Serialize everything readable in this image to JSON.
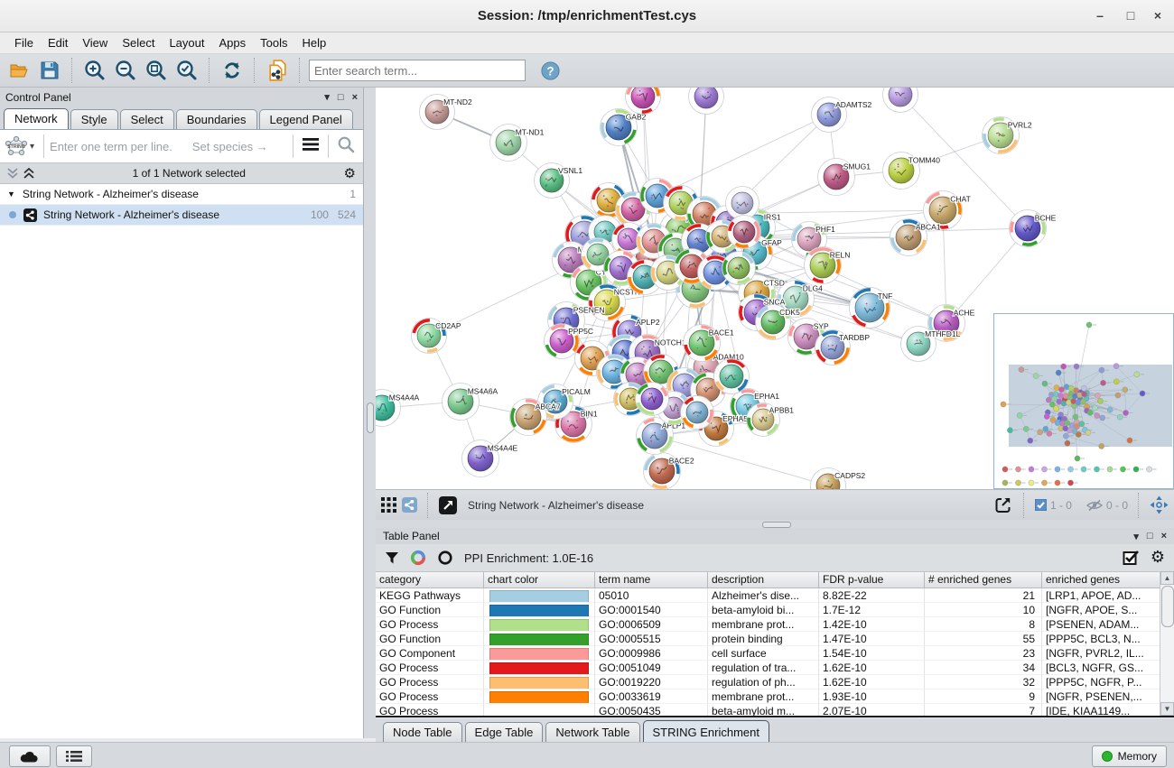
{
  "window": {
    "title": "Session: /tmp/enrichmentTest.cys",
    "minimize": "–",
    "maximize": "□",
    "close": "×"
  },
  "menu_items": [
    "File",
    "Edit",
    "View",
    "Select",
    "Layout",
    "Apps",
    "Tools",
    "Help"
  ],
  "toolbar": {
    "search_placeholder": "Enter search term..."
  },
  "control_panel": {
    "title": "Control Panel",
    "tabs": [
      "Network",
      "Style",
      "Select",
      "Boundaries",
      "Legend Panel"
    ],
    "active_tab": "Network",
    "string_query": {
      "placeholder": "Enter one term per line.",
      "species_hint": "Set species →"
    },
    "selection_summary": "1 of 1 Network selected",
    "network_tree": {
      "collection": {
        "name": "String Network - Alzheimer's disease",
        "network_count": "1"
      },
      "network": {
        "name": "String Network - Alzheimer's disease",
        "node_count": "100",
        "edge_count": "524"
      }
    }
  },
  "network_view": {
    "title": "String Network - Alzheimer's disease",
    "selected_counter": "1 - 0",
    "hidden_counter": "0 - 0"
  },
  "table_panel": {
    "title": "Table Panel",
    "ppi_label": "PPI Enrichment: 1.0E-16",
    "columns": [
      "category",
      "chart color",
      "term name",
      "description",
      "FDR p-value",
      "# enriched genes",
      "enriched genes"
    ],
    "rows": [
      {
        "category": "KEGG Pathways",
        "color": "#a6cee3",
        "term": "05010",
        "description": "Alzheimer's dise...",
        "fdr": "8.82E-22",
        "count": "21",
        "genes": "[LRP1, APOE, AD..."
      },
      {
        "category": "GO Function",
        "color": "#1f78b4",
        "term": "GO:0001540",
        "description": "beta-amyloid bi...",
        "fdr": "1.7E-12",
        "count": "10",
        "genes": "[NGFR, APOE, S..."
      },
      {
        "category": "GO Process",
        "color": "#b2df8a",
        "term": "GO:0006509",
        "description": "membrane prot...",
        "fdr": "1.42E-10",
        "count": "8",
        "genes": "[PSENEN, ADAM..."
      },
      {
        "category": "GO Function",
        "color": "#33a02c",
        "term": "GO:0005515",
        "description": "protein binding",
        "fdr": "1.47E-10",
        "count": "55",
        "genes": "[PPP5C, BCL3, N..."
      },
      {
        "category": "GO Component",
        "color": "#fb9a99",
        "term": "GO:0009986",
        "description": "cell surface",
        "fdr": "1.54E-10",
        "count": "23",
        "genes": "[NGFR, PVRL2, IL..."
      },
      {
        "category": "GO Process",
        "color": "#e31a1c",
        "term": "GO:0051049",
        "description": "regulation of tra...",
        "fdr": "1.62E-10",
        "count": "34",
        "genes": "[BCL3, NGFR, GS..."
      },
      {
        "category": "GO Process",
        "color": "#fdbf6f",
        "term": "GO:0019220",
        "description": "regulation of ph...",
        "fdr": "1.62E-10",
        "count": "32",
        "genes": "[PPP5C, NGFR, P..."
      },
      {
        "category": "GO Process",
        "color": "#ff7f00",
        "term": "GO:0033619",
        "description": "membrane prot...",
        "fdr": "1.93E-10",
        "count": "9",
        "genes": "[NGFR, PSENEN,..."
      },
      {
        "category": "GO Process",
        "color": "",
        "term": "GO:0050435",
        "description": "beta-amyloid m...",
        "fdr": "2.07E-10",
        "count": "7",
        "genes": "[IDE, KIAA1149..."
      }
    ]
  },
  "bottom_tabs": {
    "tabs": [
      "Node Table",
      "Edge Table",
      "Network Table",
      "STRING Enrichment"
    ],
    "active": "STRING Enrichment"
  },
  "status_bar": {
    "memory_label": "Memory"
  },
  "chart_data": {
    "type": "network",
    "title": "String Network - Alzheimer's disease",
    "arc_palette": [
      "#fdbf6f",
      "#33a02c",
      "#e31a1c",
      "#a6cee3",
      "#fb9a99",
      "#1f78b4",
      "#b2df8a",
      "#ff7f00"
    ],
    "plain_nodes": [
      0,
      1,
      2,
      5,
      6,
      7,
      9,
      10,
      24,
      25,
      51,
      52,
      53,
      61,
      62
    ],
    "nodes": [
      [
        "MT-ND2",
        68,
        27,
        13,
        "#c59a96"
      ],
      [
        "MT-ND1",
        147,
        61,
        14,
        "#9fd4a8"
      ],
      [
        "VSNL1",
        195,
        103,
        13,
        "#5bbf83"
      ],
      [
        "GAB2",
        269,
        44,
        14,
        "#4f81c7"
      ],
      [
        "",
        296,
        10,
        13,
        "#c751b5"
      ],
      [
        "",
        366,
        10,
        13,
        "#9b79d2"
      ],
      [
        "ADAMTS2",
        502,
        30,
        13,
        "#8f9ad9"
      ],
      [
        "",
        581,
        8,
        13,
        "#b79be0"
      ],
      [
        "PVRL2",
        692,
        53,
        14,
        "#b8dc92"
      ],
      [
        "TOMM40",
        582,
        92,
        14,
        "#bcd045"
      ],
      [
        "SMUG1",
        510,
        99,
        14,
        "#bf5c86"
      ],
      [
        "IRS1",
        422,
        155,
        14,
        "#49b9bd"
      ],
      [
        "CHAT",
        628,
        136,
        15,
        "#c8a96b"
      ],
      [
        "ABCA1",
        590,
        166,
        14,
        "#bf9e72"
      ],
      [
        "BCHE",
        722,
        156,
        14,
        "#6459c9"
      ],
      [
        "TNF",
        547,
        244,
        16,
        "#7db9da"
      ],
      [
        "ACHE",
        632,
        261,
        14,
        "#b75cc2"
      ],
      [
        "GFAP",
        420,
        183,
        13,
        "#56b9c9"
      ],
      [
        "BDNF",
        386,
        186,
        14,
        "#5b7fd3"
      ],
      [
        "PHF1",
        480,
        168,
        13,
        "#d9a4bc"
      ],
      [
        "RELN",
        495,
        197,
        14,
        "#aacb54"
      ],
      [
        "DLG4",
        465,
        234,
        14,
        "#a5d9c3"
      ],
      [
        "SYP",
        477,
        276,
        14,
        "#cc8ebd"
      ],
      [
        "TARDBP",
        506,
        288,
        13,
        "#95a3d6"
      ],
      [
        "MTHFD1L",
        601,
        284,
        13,
        "#8cd3c0"
      ],
      [
        "CADPS2",
        501,
        441,
        13,
        "#c7a05e"
      ],
      [
        "CLU",
        231,
        163,
        15,
        "#9b9bd9"
      ],
      [
        "MME",
        216,
        191,
        14,
        "#b97cba"
      ],
      [
        "APOE",
        336,
        158,
        15,
        "#7cc253"
      ],
      [
        "",
        302,
        190,
        14,
        "#c14f4f"
      ],
      [
        "CYP19A1",
        236,
        216,
        14,
        "#66c15e"
      ],
      [
        "NCSTN",
        256,
        238,
        14,
        "#d9d94f"
      ],
      [
        "PSENEN",
        211,
        258,
        14,
        "#6f6fd2"
      ],
      [
        "PPP5C",
        206,
        281,
        13,
        "#cc5ecc"
      ],
      [
        "APLP2",
        281,
        271,
        13,
        "#8f7fd9"
      ],
      [
        "APH1A",
        276,
        294,
        14,
        "#4f6fd0"
      ],
      [
        "NOTCH1",
        301,
        294,
        14,
        "#9a6fc0"
      ],
      [
        "PSEN1",
        354,
        223,
        15,
        "#86c780"
      ],
      [
        "CTSD",
        422,
        228,
        14,
        "#d9a43f"
      ],
      [
        "SNCA",
        422,
        249,
        14,
        "#9a63cc"
      ],
      [
        "CDK5",
        440,
        260,
        13,
        "#63bb63"
      ],
      [
        "EPHA1",
        412,
        353,
        13,
        "#77c9e0"
      ],
      [
        "EPHA5",
        377,
        378,
        13,
        "#c07a3f"
      ],
      [
        "ADAM10",
        366,
        310,
        14,
        "#d9a0b0"
      ],
      [
        "BACE1",
        361,
        283,
        14,
        "#6fc26f"
      ],
      [
        "BACE2",
        317,
        425,
        14,
        "#c06a50"
      ],
      [
        "APLP1",
        309,
        386,
        14,
        "#8fa8d9"
      ],
      [
        "BIN1",
        219,
        373,
        14,
        "#d977a8"
      ],
      [
        "PICALM",
        199,
        348,
        13,
        "#5aa8d0"
      ],
      [
        "ABCA7",
        169,
        365,
        14,
        "#c9a474"
      ],
      [
        "CD2AP",
        59,
        275,
        13,
        "#8cd9a0"
      ],
      [
        "MS4A6A",
        94,
        348,
        14,
        "#7cc98f"
      ],
      [
        "MS4A4A",
        7,
        355,
        14,
        "#3fbf9f"
      ],
      [
        "MS4A4E",
        116,
        411,
        14,
        "#7f63cc"
      ],
      [
        "APBB1",
        429,
        368,
        12,
        "#d9c98f"
      ],
      [
        "",
        258,
        125,
        13,
        "#e0b040"
      ],
      [
        "",
        285,
        135,
        13,
        "#d060a0"
      ],
      [
        "",
        312,
        120,
        13,
        "#60a0d8"
      ],
      [
        "",
        338,
        128,
        13,
        "#b0d060"
      ],
      [
        "",
        364,
        140,
        13,
        "#d08060"
      ],
      [
        "",
        390,
        150,
        13,
        "#8060c0"
      ],
      [
        "",
        406,
        128,
        12,
        "#c0c0e0"
      ],
      [
        "",
        254,
        160,
        12,
        "#70c8c0"
      ],
      [
        "",
        280,
        168,
        12,
        "#c878d8"
      ],
      [
        "",
        308,
        170,
        13,
        "#e09090"
      ],
      [
        "",
        332,
        180,
        13,
        "#80c080"
      ],
      [
        "",
        358,
        170,
        13,
        "#6080d0"
      ],
      [
        "",
        384,
        165,
        12,
        "#d0b070"
      ],
      [
        "",
        408,
        160,
        12,
        "#b06080"
      ],
      [
        "",
        246,
        185,
        12,
        "#90d0a0"
      ],
      [
        "",
        272,
        200,
        13,
        "#a070d0"
      ],
      [
        "",
        298,
        210,
        13,
        "#50b0b0"
      ],
      [
        "",
        324,
        205,
        13,
        "#d0d080"
      ],
      [
        "",
        350,
        198,
        13,
        "#c06060"
      ],
      [
        "",
        376,
        205,
        13,
        "#7090e0"
      ],
      [
        "",
        402,
        200,
        12,
        "#90c060"
      ],
      [
        "",
        240,
        300,
        13,
        "#e0a050"
      ],
      [
        "",
        264,
        315,
        13,
        "#6ab0e0"
      ],
      [
        "",
        290,
        318,
        13,
        "#c080c0"
      ],
      [
        "",
        316,
        315,
        13,
        "#70c070"
      ],
      [
        "",
        342,
        330,
        13,
        "#a0a0e0"
      ],
      [
        "",
        368,
        335,
        13,
        "#d09070"
      ],
      [
        "",
        394,
        320,
        13,
        "#60c0a0"
      ],
      [
        "",
        330,
        355,
        12,
        "#c0a0d0"
      ],
      [
        "",
        356,
        360,
        12,
        "#80b0d0"
      ],
      [
        "",
        282,
        345,
        12,
        "#d0c060"
      ],
      [
        "",
        306,
        345,
        12,
        "#9060d0"
      ]
    ],
    "edges": [
      [
        0,
        1,
        2
      ],
      [
        1,
        2
      ],
      [
        2,
        37
      ],
      [
        2,
        29
      ],
      [
        3,
        29,
        2
      ],
      [
        3,
        64,
        2
      ],
      [
        3,
        57
      ],
      [
        4,
        64
      ],
      [
        4,
        29
      ],
      [
        5,
        66
      ],
      [
        5,
        37
      ],
      [
        6,
        10
      ],
      [
        6,
        57
      ],
      [
        6,
        66
      ],
      [
        7,
        14
      ],
      [
        8,
        9
      ],
      [
        9,
        10
      ],
      [
        10,
        29
      ],
      [
        10,
        66
      ],
      [
        11,
        63
      ],
      [
        11,
        64
      ],
      [
        12,
        13
      ],
      [
        12,
        66
      ],
      [
        12,
        16
      ],
      [
        13,
        66
      ],
      [
        14,
        16
      ],
      [
        14,
        67
      ],
      [
        15,
        64,
        2
      ],
      [
        15,
        66
      ],
      [
        15,
        73
      ],
      [
        15,
        29
      ],
      [
        15,
        37
      ],
      [
        16,
        67
      ],
      [
        17,
        37
      ],
      [
        17,
        66
      ],
      [
        18,
        66
      ],
      [
        18,
        37
      ],
      [
        19,
        67
      ],
      [
        19,
        37
      ],
      [
        20,
        38
      ],
      [
        20,
        37
      ],
      [
        21,
        38
      ],
      [
        21,
        39
      ],
      [
        22,
        39
      ],
      [
        22,
        40
      ],
      [
        23,
        38
      ],
      [
        24,
        38
      ],
      [
        25,
        46
      ],
      [
        26,
        27
      ],
      [
        26,
        62
      ],
      [
        26,
        29
      ],
      [
        27,
        30
      ],
      [
        27,
        62
      ],
      [
        28,
        29,
        2
      ],
      [
        28,
        37
      ],
      [
        28,
        66
      ],
      [
        29,
        37,
        2
      ],
      [
        29,
        30
      ],
      [
        30,
        31
      ],
      [
        31,
        32
      ],
      [
        31,
        37
      ],
      [
        32,
        33
      ],
      [
        32,
        34
      ],
      [
        33,
        34
      ],
      [
        34,
        35
      ],
      [
        34,
        36
      ],
      [
        35,
        36
      ],
      [
        36,
        37
      ],
      [
        36,
        73
      ],
      [
        37,
        38,
        2
      ],
      [
        37,
        43
      ],
      [
        37,
        44
      ],
      [
        38,
        39
      ],
      [
        39,
        40
      ],
      [
        40,
        74
      ],
      [
        41,
        42
      ],
      [
        41,
        74
      ],
      [
        42,
        46
      ],
      [
        43,
        44
      ],
      [
        43,
        74
      ],
      [
        44,
        66
      ],
      [
        45,
        46
      ],
      [
        46,
        74,
        2
      ],
      [
        46,
        83
      ],
      [
        47,
        48
      ],
      [
        47,
        49
      ],
      [
        47,
        51
      ],
      [
        48,
        49
      ],
      [
        48,
        70
      ],
      [
        49,
        53
      ],
      [
        50,
        51
      ],
      [
        50,
        69
      ],
      [
        51,
        52
      ],
      [
        51,
        53
      ],
      [
        53,
        49
      ],
      [
        54,
        84
      ],
      [
        54,
        46
      ],
      [
        55,
        56
      ],
      [
        56,
        57
      ],
      [
        57,
        58
      ],
      [
        58,
        59
      ],
      [
        59,
        60
      ],
      [
        60,
        61
      ],
      [
        62,
        63
      ],
      [
        63,
        64
      ],
      [
        64,
        65
      ],
      [
        65,
        66
      ],
      [
        66,
        67
      ],
      [
        67,
        68
      ],
      [
        69,
        70
      ],
      [
        70,
        71
      ],
      [
        71,
        72
      ],
      [
        72,
        73
      ],
      [
        73,
        74
      ],
      [
        74,
        75
      ],
      [
        76,
        77
      ],
      [
        77,
        78
      ],
      [
        78,
        79
      ],
      [
        79,
        80
      ],
      [
        80,
        81
      ],
      [
        81,
        82
      ],
      [
        83,
        84
      ],
      [
        85,
        86
      ],
      [
        56,
        63
      ],
      [
        57,
        64
      ],
      [
        58,
        65
      ],
      [
        59,
        66
      ],
      [
        60,
        67
      ],
      [
        63,
        70
      ],
      [
        64,
        71
      ],
      [
        65,
        72
      ],
      [
        66,
        73
      ],
      [
        67,
        74
      ],
      [
        70,
        77
      ],
      [
        71,
        78
      ],
      [
        72,
        79
      ],
      [
        73,
        80
      ],
      [
        74,
        81
      ],
      [
        29,
        64
      ],
      [
        29,
        65
      ],
      [
        29,
        71
      ],
      [
        37,
        65
      ],
      [
        37,
        72
      ],
      [
        37,
        74
      ],
      [
        15,
        72
      ],
      [
        15,
        65
      ],
      [
        36,
        78
      ],
      [
        36,
        79
      ],
      [
        34,
        77
      ],
      [
        35,
        78
      ],
      [
        43,
        81
      ],
      [
        44,
        73
      ],
      [
        46,
        81
      ],
      [
        46,
        80
      ],
      [
        28,
        58
      ],
      [
        28,
        59
      ],
      [
        26,
        69
      ],
      [
        27,
        69
      ],
      [
        30,
        70
      ],
      [
        31,
        71
      ],
      [
        32,
        76
      ],
      [
        33,
        76
      ],
      [
        38,
        67
      ],
      [
        39,
        74
      ],
      [
        40,
        75
      ],
      [
        21,
        75
      ],
      [
        22,
        75
      ],
      [
        18,
        60
      ],
      [
        17,
        61
      ],
      [
        19,
        61
      ],
      [
        20,
        68
      ],
      [
        41,
        82
      ],
      [
        42,
        83
      ],
      [
        16,
        68
      ],
      [
        12,
        59
      ],
      [
        13,
        67
      ],
      [
        2,
        26
      ],
      [
        11,
        66
      ],
      [
        24,
        21
      ],
      [
        23,
        39
      ],
      [
        45,
        86
      ],
      [
        47,
        70
      ],
      [
        49,
        85
      ]
    ],
    "minimap": {
      "isolated_row1": [
        "#d85858",
        "#e09090",
        "#c87ad8",
        "#caa6e6",
        "#7ab2e2",
        "#96cbe8",
        "#6ecaca",
        "#52c6ae",
        "#a6da96",
        "#52c45a",
        "#2eb44e",
        "#d8dde2"
      ],
      "isolated_row2": [
        "#aab454",
        "#ccca52",
        "#ecec80",
        "#e2a656",
        "#e07046",
        "#d64646"
      ],
      "extras": [
        [
          105,
          12,
          "#6fc26f"
        ],
        [
          10,
          100,
          "#e0a050"
        ],
        [
          92,
          160,
          "#5cb85c"
        ],
        [
          150,
          140,
          "#d87040"
        ]
      ]
    }
  }
}
